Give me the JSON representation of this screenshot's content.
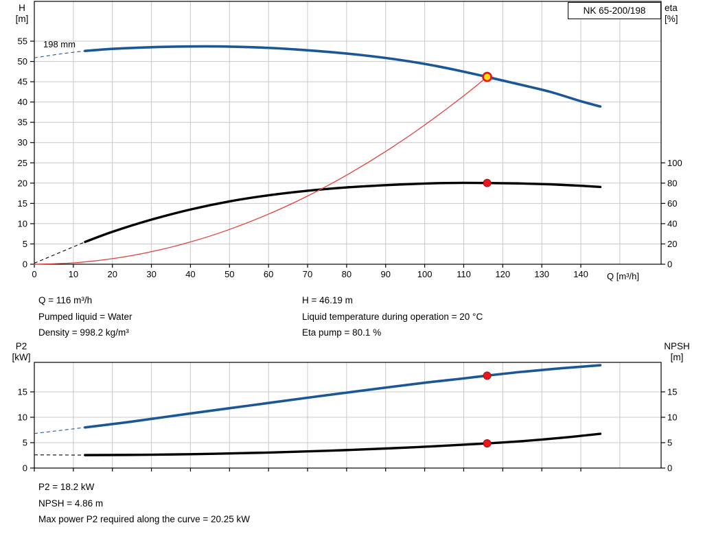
{
  "pump_model": "NK 65-200/198",
  "annotations": {
    "impeller_diameter": "198 mm"
  },
  "info_top": {
    "left": [
      "Q = 116 m³/h",
      "Pumped liquid = Water",
      "Density = 998.2 kg/m³"
    ],
    "right": [
      "H = 46.19 m",
      "Liquid temperature during operation = 20 °C",
      "Eta pump = 80.1 %"
    ]
  },
  "info_bottom": [
    "P2 = 18.2 kW",
    "NPSH = 4.86 m",
    "Max power P2 required along the curve = 20.25 kW"
  ],
  "colors": {
    "curve_blue": "#1a5796",
    "curve_black": "#000000",
    "system_red": "#e2403c",
    "marker_red": "#e8191c",
    "marker_ring": "#9d1216",
    "duty_fill": "#ffe400",
    "grid": "#c8c8c8",
    "axis": "#000000"
  },
  "chart_data": [
    {
      "id": "qh-eta-chart",
      "type": "line",
      "title": "NK 65-200/198",
      "x_axis": {
        "label": "Q [m³/h]",
        "min": 0,
        "max": 160,
        "show_labels": true,
        "ticks": [
          0,
          10,
          20,
          30,
          40,
          50,
          60,
          70,
          80,
          90,
          100,
          110,
          120,
          130,
          140
        ],
        "grid": [
          10,
          20,
          30,
          40,
          50,
          60,
          70,
          80,
          90,
          100,
          110,
          120,
          130,
          140,
          150
        ]
      },
      "y_left": {
        "name": "H",
        "unit": "[m]",
        "min": 0,
        "max": 65,
        "ticks": [
          0,
          5,
          10,
          15,
          20,
          25,
          30,
          35,
          40,
          45,
          50,
          55
        ],
        "grid": [
          5,
          10,
          15,
          20,
          25,
          30,
          35,
          40,
          45,
          50,
          55
        ]
      },
      "y_right": {
        "name": "eta",
        "unit": "[%]",
        "ticks": [
          0,
          20,
          40,
          60,
          80,
          100
        ],
        "left_units_per_right_unit": 0.25
      },
      "series": [
        {
          "name": "qh-curve",
          "axis": "left",
          "color_key": "curve_blue",
          "width": 3.6,
          "dash_lead": [
            [
              0,
              50.9
            ],
            [
              7,
              51.9
            ],
            [
              13,
              52.6
            ]
          ],
          "points": [
            [
              13,
              52.6
            ],
            [
              20,
              53.1
            ],
            [
              28,
              53.45
            ],
            [
              36,
              53.65
            ],
            [
              44,
              53.72
            ],
            [
              52,
              53.62
            ],
            [
              60,
              53.35
            ],
            [
              68,
              52.9
            ],
            [
              76,
              52.3
            ],
            [
              84,
              51.55
            ],
            [
              92,
              50.6
            ],
            [
              100,
              49.4
            ],
            [
              108,
              47.9
            ],
            [
              116,
              46.19
            ],
            [
              124,
              44.4
            ],
            [
              132,
              42.55
            ],
            [
              140,
              40.2
            ],
            [
              145,
              38.9
            ]
          ]
        },
        {
          "name": "eta-curve",
          "axis": "right",
          "color_key": "curve_black",
          "width": 3.4,
          "dash_lead": [
            [
              0,
              1
            ],
            [
              13,
              22
            ]
          ],
          "points": [
            [
              13,
              22
            ],
            [
              20,
              32
            ],
            [
              30,
              44
            ],
            [
              40,
              54
            ],
            [
              50,
              62
            ],
            [
              60,
              68
            ],
            [
              70,
              72.5
            ],
            [
              80,
              75.8
            ],
            [
              90,
              78
            ],
            [
              100,
              79.6
            ],
            [
              108,
              80.2
            ],
            [
              116,
              80.1
            ],
            [
              124,
              79.7
            ],
            [
              132,
              78.8
            ],
            [
              140,
              77.4
            ],
            [
              145,
              76.2
            ]
          ]
        },
        {
          "name": "system-curve",
          "axis": "left",
          "color_key": "system_red",
          "width": 1.3,
          "points": [
            [
              0,
              0
            ],
            [
              10,
              0.34
            ],
            [
              20,
              1.37
            ],
            [
              30,
              3.09
            ],
            [
              40,
              5.49
            ],
            [
              50,
              8.58
            ],
            [
              60,
              12.36
            ],
            [
              70,
              16.82
            ],
            [
              80,
              21.97
            ],
            [
              90,
              27.8
            ],
            [
              100,
              34.33
            ],
            [
              110,
              41.53
            ],
            [
              116,
              46.19
            ]
          ]
        }
      ],
      "markers": [
        {
          "name": "duty-point",
          "x": 116,
          "y": 46.19,
          "axis": "left",
          "style": "duty"
        },
        {
          "name": "eta-duty-dot",
          "x": 116,
          "y": 80.1,
          "axis": "right",
          "style": "dot"
        }
      ]
    },
    {
      "id": "p2-npsh-chart",
      "type": "line",
      "x_axis": {
        "label": "",
        "min": 0,
        "max": 160,
        "show_labels": false,
        "ticks": [
          0,
          10,
          20,
          30,
          40,
          50,
          60,
          70,
          80,
          90,
          100,
          110,
          120,
          130,
          140
        ],
        "grid": [
          10,
          20,
          30,
          40,
          50,
          60,
          70,
          80,
          90,
          100,
          110,
          120,
          130,
          140,
          150
        ]
      },
      "y_left": {
        "name": "P2",
        "unit": "[kW]",
        "min": 0,
        "max": 20.8,
        "ticks": [
          0,
          5,
          10,
          15
        ],
        "grid": [
          5,
          10,
          15
        ]
      },
      "y_right": {
        "name": "NPSH",
        "unit": "[m]",
        "ticks": [
          0,
          5,
          10,
          15
        ],
        "left_units_per_right_unit": 1
      },
      "series": [
        {
          "name": "p2-curve",
          "axis": "left",
          "color_key": "curve_blue",
          "width": 3.6,
          "dash_lead": [
            [
              0,
              6.8
            ],
            [
              13,
              8.0
            ]
          ],
          "points": [
            [
              13,
              8.0
            ],
            [
              25,
              9.15
            ],
            [
              40,
              10.75
            ],
            [
              55,
              12.3
            ],
            [
              70,
              13.85
            ],
            [
              85,
              15.35
            ],
            [
              100,
              16.8
            ],
            [
              110,
              17.65
            ],
            [
              116,
              18.2
            ],
            [
              125,
              18.95
            ],
            [
              135,
              19.65
            ],
            [
              145,
              20.25
            ]
          ]
        },
        {
          "name": "npsh-curve",
          "axis": "left",
          "color_key": "curve_black",
          "width": 3.4,
          "dash_lead": [
            [
              0,
              2.6
            ],
            [
              13,
              2.55
            ]
          ],
          "points": [
            [
              13,
              2.55
            ],
            [
              30,
              2.62
            ],
            [
              45,
              2.8
            ],
            [
              60,
              3.05
            ],
            [
              75,
              3.4
            ],
            [
              90,
              3.85
            ],
            [
              100,
              4.2
            ],
            [
              110,
              4.6
            ],
            [
              116,
              4.86
            ],
            [
              125,
              5.3
            ],
            [
              135,
              5.95
            ],
            [
              145,
              6.75
            ]
          ]
        }
      ],
      "markers": [
        {
          "name": "p2-duty-dot",
          "x": 116,
          "y": 18.2,
          "axis": "left",
          "style": "dot"
        },
        {
          "name": "npsh-duty-dot",
          "x": 116,
          "y": 4.86,
          "axis": "left",
          "style": "dot"
        }
      ]
    }
  ]
}
